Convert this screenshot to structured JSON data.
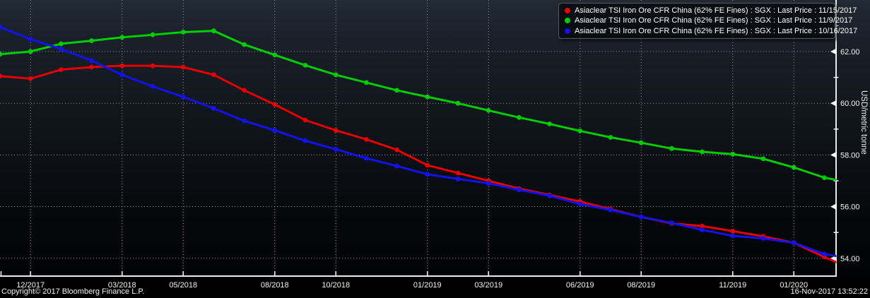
{
  "window": {
    "copyright": "Copyright© 2017 Bloomberg Finance L.P.",
    "timestamp": "16-Nov-2017 13:52:22"
  },
  "chart_data": {
    "type": "line",
    "title": "",
    "xlabel": "",
    "ylabel": "USD/metric tonne",
    "ylim": [
      53.3,
      63.6
    ],
    "grid": true,
    "legend_position": "top-right",
    "background_top_color": "#222a33",
    "background_bottom_color": "#010203",
    "axis_color": "#e9ebee",
    "grid_color": "#c3c7cd",
    "categories": [
      "11/2017",
      "12/2017",
      "01/2018",
      "02/2018",
      "03/2018",
      "04/2018",
      "05/2018",
      "06/2018",
      "07/2018",
      "08/2018",
      "09/2018",
      "10/2018",
      "11/2018",
      "12/2018",
      "01/2019",
      "02/2019",
      "03/2019",
      "04/2019",
      "05/2019",
      "06/2019",
      "07/2019",
      "08/2019",
      "09/2019",
      "10/2019",
      "11/2019",
      "12/2019",
      "01/2020",
      "02/2020",
      "03/2020"
    ],
    "x_tick_labels": [
      {
        "index": 1,
        "label": "12/2017"
      },
      {
        "index": 4,
        "label": "03/2018"
      },
      {
        "index": 6,
        "label": "05/2018"
      },
      {
        "index": 9,
        "label": "08/2018"
      },
      {
        "index": 11,
        "label": "10/2018"
      },
      {
        "index": 14,
        "label": "01/2019"
      },
      {
        "index": 16,
        "label": "03/2019"
      },
      {
        "index": 19,
        "label": "06/2019"
      },
      {
        "index": 21,
        "label": "08/2019"
      },
      {
        "index": 24,
        "label": "11/2019"
      },
      {
        "index": 26,
        "label": "01/2020"
      }
    ],
    "y_ticks_major": [
      {
        "value": 62,
        "label": "62.00"
      },
      {
        "value": 60,
        "label": "60.00"
      },
      {
        "value": 58,
        "label": "58.00"
      },
      {
        "value": 56,
        "label": "56.00"
      },
      {
        "value": 54,
        "label": "54.00"
      }
    ],
    "y_ticks_minor": [
      63,
      61,
      59,
      57,
      55
    ],
    "series": [
      {
        "name": "Asiaclear TSI Iron Ore CFR China (62% FE Fines) : SGX : Last Price : 11/15/2017",
        "color": "#e60000",
        "values": [
          61.05,
          60.95,
          61.3,
          61.4,
          61.45,
          61.45,
          61.4,
          61.1,
          60.5,
          59.95,
          59.35,
          58.95,
          58.6,
          58.2,
          57.6,
          57.3,
          57.0,
          56.7,
          56.45,
          56.2,
          55.9,
          55.6,
          55.35,
          55.25,
          55.05,
          54.85,
          54.6,
          54.05,
          53.55
        ]
      },
      {
        "name": "Asiaclear TSI Iron Ore CFR China (62% FE Fines) : SGX : Last Price : 11/9/2017",
        "color": "#00cc00",
        "values": [
          61.9,
          62.0,
          62.3,
          62.42,
          62.55,
          62.65,
          62.75,
          62.8,
          62.27,
          61.87,
          61.47,
          61.1,
          60.8,
          60.5,
          60.25,
          60.0,
          59.72,
          59.45,
          59.2,
          58.93,
          58.68,
          58.47,
          58.25,
          58.12,
          58.03,
          57.85,
          57.52,
          57.12,
          56.9
        ]
      },
      {
        "name": "Asiaclear TSI Iron Ore CFR China (62% FE Fines) : SGX : Last Price : 10/16/2017",
        "color": "#1212ee",
        "values": [
          62.95,
          62.48,
          62.1,
          61.65,
          61.1,
          60.65,
          60.25,
          59.8,
          59.32,
          58.95,
          58.55,
          58.22,
          57.87,
          57.57,
          57.25,
          57.07,
          56.9,
          56.65,
          56.42,
          56.1,
          55.87,
          55.6,
          55.37,
          55.1,
          54.87,
          54.77,
          54.6,
          54.17,
          53.95
        ]
      }
    ]
  }
}
